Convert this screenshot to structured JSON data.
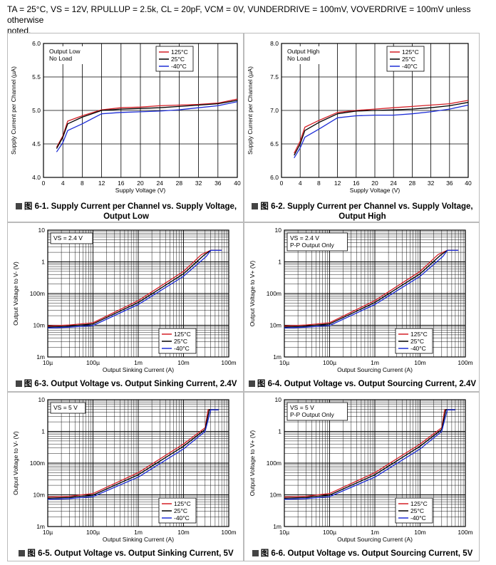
{
  "header": {
    "line1": "TA = 25°C, VS = 12V, RPULLUP = 2.5k, CL = 20pF, VCM = 0V, VUNDERDRIVE = 100mV, VOVERDRIVE = 100mV unless otherwise",
    "line2": "noted."
  },
  "colors": {
    "c125": "#d41f26",
    "c25": "#000000",
    "cm40": "#1d2dd6"
  },
  "chart_data": [
    {
      "id": "6-1",
      "type": "line",
      "scale": "linear",
      "caption_prefix": "图 6-1.",
      "caption": "Supply Current per Channel vs. Supply Voltage, Output Low",
      "xlabel": "Supply Voltage (V)",
      "ylabel": "Supply Current per Channel (µA)",
      "xlim": [
        0,
        40
      ],
      "ylim": [
        4.0,
        6.0
      ],
      "xticks": [
        0,
        4,
        8,
        12,
        16,
        20,
        24,
        28,
        32,
        36,
        40
      ],
      "xticklabels": [
        "0",
        "4",
        "8",
        "12",
        "16",
        "20",
        "24",
        "28",
        "32",
        "36",
        "40"
      ],
      "yticks": [
        4.0,
        4.5,
        5.0,
        5.5,
        6.0
      ],
      "yticklabels": [
        "4.0",
        "4.5",
        "5.0",
        "5.5",
        "6.0"
      ],
      "annotation": [
        "Output Low",
        "No Load"
      ],
      "legend": [
        "125°C",
        "25°C",
        "-40°C"
      ],
      "series": [
        {
          "name": "125°C",
          "x": [
            2.7,
            4,
            5,
            8,
            12,
            16,
            20,
            24,
            28,
            32,
            36,
            40
          ],
          "y": [
            4.45,
            4.62,
            4.84,
            4.92,
            5.01,
            5.04,
            5.05,
            5.07,
            5.08,
            5.09,
            5.11,
            5.17
          ]
        },
        {
          "name": "25°C",
          "x": [
            2.7,
            4,
            5,
            8,
            12,
            16,
            20,
            24,
            28,
            32,
            36,
            40
          ],
          "y": [
            4.43,
            4.6,
            4.8,
            4.9,
            5.0,
            5.02,
            5.03,
            5.04,
            5.06,
            5.08,
            5.1,
            5.15
          ]
        },
        {
          "name": "-40°C",
          "x": [
            2.7,
            4,
            5,
            8,
            12,
            16,
            20,
            24,
            28,
            32,
            36,
            40
          ],
          "y": [
            4.38,
            4.52,
            4.7,
            4.8,
            4.95,
            4.97,
            4.98,
            4.99,
            5.01,
            5.04,
            5.07,
            5.13
          ]
        }
      ]
    },
    {
      "id": "6-2",
      "type": "line",
      "scale": "linear",
      "caption_prefix": "图 6-2.",
      "caption": "Supply Current per Channel vs. Supply Voltage, Output High",
      "xlabel": "Supply Voltage (V)",
      "ylabel": "Supply Current per Channel (µA)",
      "xlim": [
        0,
        40
      ],
      "ylim": [
        6.0,
        8.0
      ],
      "xticks": [
        0,
        4,
        8,
        12,
        16,
        20,
        24,
        28,
        32,
        36,
        40
      ],
      "xticklabels": [
        "0",
        "4",
        "8",
        "12",
        "16",
        "20",
        "24",
        "28",
        "32",
        "36",
        "40"
      ],
      "yticks": [
        6.0,
        6.5,
        7.0,
        7.5,
        8.0
      ],
      "yticklabels": [
        "6.0",
        "6.5",
        "7.0",
        "7.5",
        "8.0"
      ],
      "annotation": [
        "Output High",
        "No Load"
      ],
      "legend": [
        "125°C",
        "25°C",
        "-40°C"
      ],
      "series": [
        {
          "name": "125°C",
          "x": [
            2.7,
            4,
            5,
            8,
            12,
            16,
            20,
            24,
            28,
            32,
            36,
            40
          ],
          "y": [
            6.36,
            6.54,
            6.75,
            6.85,
            6.97,
            7.0,
            7.02,
            7.04,
            7.06,
            7.08,
            7.1,
            7.15
          ]
        },
        {
          "name": "25°C",
          "x": [
            2.7,
            4,
            5,
            8,
            12,
            16,
            20,
            24,
            28,
            32,
            36,
            40
          ],
          "y": [
            6.33,
            6.5,
            6.7,
            6.82,
            6.95,
            6.99,
            7.0,
            7.01,
            7.02,
            7.04,
            7.07,
            7.12
          ]
        },
        {
          "name": "-40°C",
          "x": [
            2.7,
            4,
            5,
            8,
            12,
            16,
            20,
            24,
            28,
            32,
            36,
            40
          ],
          "y": [
            6.29,
            6.44,
            6.6,
            6.72,
            6.89,
            6.92,
            6.93,
            6.93,
            6.95,
            6.98,
            7.02,
            7.08
          ]
        }
      ]
    },
    {
      "id": "6-3",
      "type": "line",
      "scale": "loglog",
      "caption_prefix": "图 6-3.",
      "caption": "Output Voltage vs. Output Sinking Current, 2.4V",
      "xlabel": "Output Sinking Current (A)",
      "ylabel": "Output Voltage to V- (V)",
      "xlim": [
        1e-05,
        0.1
      ],
      "ylim": [
        0.001,
        10
      ],
      "xticks": [
        1e-05,
        0.0001,
        0.001,
        0.01,
        0.1
      ],
      "xticklabels": [
        "10µ",
        "100µ",
        "1m",
        "10m",
        "100m"
      ],
      "yticks": [
        0.001,
        0.01,
        0.1,
        1,
        10
      ],
      "yticklabels": [
        "1m",
        "10m",
        "100m",
        "1",
        "10"
      ],
      "annotation": [
        "VS = 2.4 V"
      ],
      "legend": [
        "125°C",
        "25°C",
        "-40°C"
      ],
      "series": [
        {
          "name": "125°C",
          "x": [
            1e-05,
            3e-05,
            0.0001,
            0.001,
            0.01,
            0.025,
            0.04,
            0.07
          ],
          "y": [
            0.0095,
            0.0102,
            0.012,
            0.06,
            0.5,
            1.7,
            2.3,
            2.3
          ]
        },
        {
          "name": "25°C",
          "x": [
            1e-05,
            3e-05,
            0.0001,
            0.001,
            0.01,
            0.028,
            0.04,
            0.07
          ],
          "y": [
            0.0088,
            0.0094,
            0.011,
            0.052,
            0.42,
            1.6,
            2.3,
            2.3
          ]
        },
        {
          "name": "-40°C",
          "x": [
            1e-05,
            3e-05,
            0.0001,
            0.001,
            0.01,
            0.032,
            0.04,
            0.07
          ],
          "y": [
            0.0082,
            0.0087,
            0.0098,
            0.045,
            0.35,
            1.5,
            2.3,
            2.3
          ]
        }
      ]
    },
    {
      "id": "6-4",
      "type": "line",
      "scale": "loglog",
      "caption_prefix": "图 6-4.",
      "caption": "Output Voltage vs. Output Sourcing Current, 2.4V",
      "xlabel": "Output Sourcing Current (A)",
      "ylabel": "Output Voltage to V+ (V)",
      "xlim": [
        1e-05,
        0.1
      ],
      "ylim": [
        0.001,
        10
      ],
      "xticks": [
        1e-05,
        0.0001,
        0.001,
        0.01,
        0.1
      ],
      "xticklabels": [
        "10µ",
        "100µ",
        "1m",
        "10m",
        "100m"
      ],
      "yticks": [
        0.001,
        0.01,
        0.1,
        1,
        10
      ],
      "yticklabels": [
        "1m",
        "10m",
        "100m",
        "1",
        "10"
      ],
      "annotation": [
        "VS = 2.4 V",
        "P-P Output Only"
      ],
      "legend": [
        "125°C",
        "25°C",
        "-40°C"
      ],
      "series": [
        {
          "name": "125°C",
          "x": [
            1e-05,
            3e-05,
            0.0001,
            0.001,
            0.01,
            0.025,
            0.04,
            0.07
          ],
          "y": [
            0.0095,
            0.0102,
            0.012,
            0.06,
            0.5,
            1.7,
            2.3,
            2.3
          ]
        },
        {
          "name": "25°C",
          "x": [
            1e-05,
            3e-05,
            0.0001,
            0.001,
            0.01,
            0.028,
            0.04,
            0.07
          ],
          "y": [
            0.0088,
            0.0094,
            0.011,
            0.052,
            0.42,
            1.6,
            2.3,
            2.3
          ]
        },
        {
          "name": "-40°C",
          "x": [
            1e-05,
            3e-05,
            0.0001,
            0.001,
            0.01,
            0.032,
            0.04,
            0.07
          ],
          "y": [
            0.0082,
            0.0087,
            0.0098,
            0.045,
            0.35,
            1.5,
            2.3,
            2.3
          ]
        }
      ]
    },
    {
      "id": "6-5",
      "type": "line",
      "scale": "loglog",
      "caption_prefix": "图 6-5.",
      "caption": "Output Voltage vs. Output Sinking Current, 5V",
      "xlabel": "Output Sinking Current (A)",
      "ylabel": "Output Voltage to V- (V)",
      "xlim": [
        1e-05,
        0.1
      ],
      "ylim": [
        0.001,
        10
      ],
      "xticks": [
        1e-05,
        0.0001,
        0.001,
        0.01,
        0.1
      ],
      "xticklabels": [
        "10µ",
        "100µ",
        "1m",
        "10m",
        "100m"
      ],
      "yticks": [
        0.001,
        0.01,
        0.1,
        1,
        10
      ],
      "yticklabels": [
        "1m",
        "10m",
        "100m",
        "1",
        "10"
      ],
      "annotation": [
        "VS = 5 V"
      ],
      "legend": [
        "125°C",
        "25°C",
        "-40°C"
      ],
      "series": [
        {
          "name": "125°C",
          "x": [
            1e-05,
            3e-05,
            0.0001,
            0.001,
            0.01,
            0.03,
            0.035,
            0.045,
            0.06
          ],
          "y": [
            0.0085,
            0.009,
            0.011,
            0.05,
            0.4,
            1.3,
            4.8,
            4.8,
            4.8
          ]
        },
        {
          "name": "25°C",
          "x": [
            1e-05,
            3e-05,
            0.0001,
            0.001,
            0.01,
            0.03,
            0.037,
            0.045,
            0.06
          ],
          "y": [
            0.0078,
            0.0083,
            0.0098,
            0.043,
            0.34,
            1.15,
            4.8,
            4.8,
            4.8
          ]
        },
        {
          "name": "-40°C",
          "x": [
            1e-05,
            3e-05,
            0.0001,
            0.001,
            0.01,
            0.03,
            0.04,
            0.045,
            0.06
          ],
          "y": [
            0.0072,
            0.0076,
            0.0088,
            0.036,
            0.28,
            1.0,
            4.8,
            4.8,
            4.8
          ]
        }
      ]
    },
    {
      "id": "6-6",
      "type": "line",
      "scale": "loglog",
      "caption_prefix": "图 6-6.",
      "caption": "Output Voltage vs. Output Sourcing Current, 5V",
      "xlabel": "Output Sourcing Current (A)",
      "ylabel": "Output Voltage to V+ (V)",
      "xlim": [
        1e-05,
        0.1
      ],
      "ylim": [
        0.001,
        10
      ],
      "xticks": [
        1e-05,
        0.0001,
        0.001,
        0.01,
        0.1
      ],
      "xticklabels": [
        "10µ",
        "100µ",
        "1m",
        "10m",
        "100m"
      ],
      "yticks": [
        0.001,
        0.01,
        0.1,
        1,
        10
      ],
      "yticklabels": [
        "1m",
        "10m",
        "100m",
        "1",
        "10"
      ],
      "annotation": [
        "VS = 5 V",
        "P-P Output Only"
      ],
      "legend": [
        "125°C",
        "25°C",
        "-40°C"
      ],
      "series": [
        {
          "name": "125°C",
          "x": [
            1e-05,
            3e-05,
            0.0001,
            0.001,
            0.01,
            0.03,
            0.035,
            0.045,
            0.06
          ],
          "y": [
            0.0085,
            0.009,
            0.011,
            0.05,
            0.4,
            1.3,
            4.8,
            4.8,
            4.8
          ]
        },
        {
          "name": "25°C",
          "x": [
            1e-05,
            3e-05,
            0.0001,
            0.001,
            0.01,
            0.03,
            0.037,
            0.045,
            0.06
          ],
          "y": [
            0.0078,
            0.0083,
            0.0098,
            0.043,
            0.34,
            1.15,
            4.8,
            4.8,
            4.8
          ]
        },
        {
          "name": "-40°C",
          "x": [
            1e-05,
            3e-05,
            0.0001,
            0.001,
            0.01,
            0.03,
            0.04,
            0.045,
            0.06
          ],
          "y": [
            0.0072,
            0.0076,
            0.0088,
            0.036,
            0.28,
            1.0,
            4.8,
            4.8,
            4.8
          ]
        }
      ]
    }
  ]
}
